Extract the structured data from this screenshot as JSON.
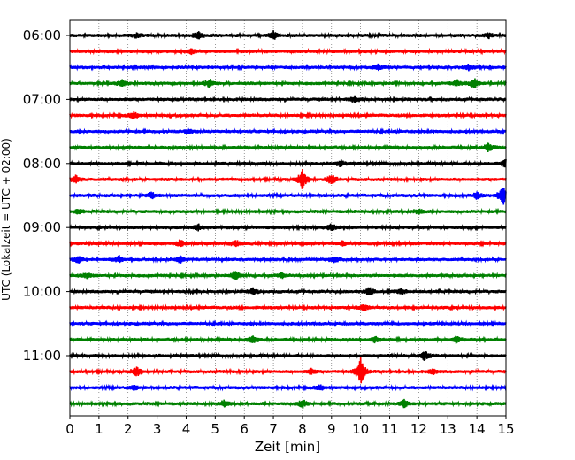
{
  "chart_data": {
    "type": "line",
    "title": "",
    "xlabel": "Zeit  [min]",
    "ylabel": "UTC (Lokalzeit = UTC + 02:00)",
    "xlim": [
      0,
      15
    ],
    "x_ticks": [
      "0",
      "1",
      "2",
      "3",
      "4",
      "5",
      "6",
      "7",
      "8",
      "9",
      "10",
      "11",
      "12",
      "13",
      "14",
      "15"
    ],
    "y_tick_labels": [
      "06:00",
      "07:00",
      "08:00",
      "09:00",
      "10:00",
      "11:00"
    ],
    "grid": "vertical dotted lines at each minute",
    "trace_interval_minutes": 15,
    "start_utc": "06:00",
    "colors_cycle": [
      "#000000",
      "#ff0000",
      "#0000ff",
      "#008000"
    ],
    "series": [
      {
        "start": "06:00",
        "color": "#000000",
        "events": [
          {
            "t": 2.3,
            "amp": 0.3
          },
          {
            "t": 4.4,
            "amp": 0.5
          },
          {
            "t": 7.0,
            "amp": 0.5
          },
          {
            "t": 14.4,
            "amp": 0.3
          }
        ]
      },
      {
        "start": "06:15",
        "color": "#ff0000",
        "events": [
          {
            "t": 4.2,
            "amp": 0.3
          }
        ]
      },
      {
        "start": "06:30",
        "color": "#0000ff",
        "events": [
          {
            "t": 10.6,
            "amp": 0.3
          },
          {
            "t": 13.7,
            "amp": 0.3
          }
        ]
      },
      {
        "start": "06:45",
        "color": "#008000",
        "events": [
          {
            "t": 1.8,
            "amp": 0.4
          },
          {
            "t": 4.8,
            "amp": 0.5
          },
          {
            "t": 13.3,
            "amp": 0.4
          },
          {
            "t": 13.9,
            "amp": 0.6
          }
        ]
      },
      {
        "start": "07:00",
        "color": "#000000",
        "events": [
          {
            "t": 9.8,
            "amp": 0.4
          }
        ]
      },
      {
        "start": "07:15",
        "color": "#ff0000",
        "events": [
          {
            "t": 2.2,
            "amp": 0.4
          }
        ]
      },
      {
        "start": "07:30",
        "color": "#0000ff",
        "events": [
          {
            "t": 4.1,
            "amp": 0.3
          }
        ]
      },
      {
        "start": "07:45",
        "color": "#008000",
        "events": [
          {
            "t": 14.4,
            "amp": 0.6
          }
        ]
      },
      {
        "start": "08:00",
        "color": "#000000",
        "events": [
          {
            "t": 9.3,
            "amp": 0.4
          },
          {
            "t": 15.0,
            "amp": 0.6
          }
        ]
      },
      {
        "start": "08:15",
        "color": "#ff0000",
        "events": [
          {
            "t": 0.2,
            "amp": 0.5
          },
          {
            "t": 8.0,
            "amp": 1.2
          },
          {
            "t": 9.0,
            "amp": 0.7
          }
        ]
      },
      {
        "start": "08:30",
        "color": "#0000ff",
        "events": [
          {
            "t": 2.8,
            "amp": 0.4
          },
          {
            "t": 14.0,
            "amp": 0.4
          },
          {
            "t": 14.9,
            "amp": 1.2
          }
        ]
      },
      {
        "start": "08:45",
        "color": "#008000",
        "events": [
          {
            "t": 0.3,
            "amp": 0.3
          },
          {
            "t": 12.0,
            "amp": 0.3
          }
        ]
      },
      {
        "start": "09:00",
        "color": "#000000",
        "events": [
          {
            "t": 4.4,
            "amp": 0.4
          },
          {
            "t": 9.0,
            "amp": 0.4
          }
        ]
      },
      {
        "start": "09:15",
        "color": "#ff0000",
        "events": [
          {
            "t": 3.8,
            "amp": 0.4
          },
          {
            "t": 5.7,
            "amp": 0.4
          },
          {
            "t": 9.4,
            "amp": 0.3
          }
        ]
      },
      {
        "start": "09:30",
        "color": "#0000ff",
        "events": [
          {
            "t": 0.3,
            "amp": 0.4
          },
          {
            "t": 1.7,
            "amp": 0.4
          },
          {
            "t": 3.8,
            "amp": 0.4
          },
          {
            "t": 9.1,
            "amp": 0.4
          }
        ]
      },
      {
        "start": "09:45",
        "color": "#008000",
        "events": [
          {
            "t": 0.6,
            "amp": 0.3
          },
          {
            "t": 5.7,
            "amp": 0.7
          },
          {
            "t": 7.3,
            "amp": 0.3
          }
        ]
      },
      {
        "start": "10:00",
        "color": "#000000",
        "events": [
          {
            "t": 6.3,
            "amp": 0.4
          },
          {
            "t": 10.3,
            "amp": 0.5
          },
          {
            "t": 11.4,
            "amp": 0.3
          }
        ]
      },
      {
        "start": "10:15",
        "color": "#ff0000",
        "events": [
          {
            "t": 10.1,
            "amp": 0.4
          }
        ]
      },
      {
        "start": "10:30",
        "color": "#0000ff",
        "events": []
      },
      {
        "start": "10:45",
        "color": "#008000",
        "events": [
          {
            "t": 6.3,
            "amp": 0.5
          },
          {
            "t": 10.5,
            "amp": 0.4
          },
          {
            "t": 13.3,
            "amp": 0.4
          }
        ]
      },
      {
        "start": "11:00",
        "color": "#000000",
        "events": [
          {
            "t": 12.2,
            "amp": 0.6
          }
        ]
      },
      {
        "start": "11:15",
        "color": "#ff0000",
        "events": [
          {
            "t": 2.3,
            "amp": 0.6
          },
          {
            "t": 8.3,
            "amp": 0.3
          },
          {
            "t": 10.0,
            "amp": 1.6
          },
          {
            "t": 12.5,
            "amp": 0.3
          }
        ]
      },
      {
        "start": "11:30",
        "color": "#0000ff",
        "events": [
          {
            "t": 2.2,
            "amp": 0.3
          },
          {
            "t": 8.6,
            "amp": 0.3
          }
        ]
      },
      {
        "start": "11:45",
        "color": "#008000",
        "events": [
          {
            "t": 5.3,
            "amp": 0.4
          },
          {
            "t": 8.0,
            "amp": 0.5
          },
          {
            "t": 11.5,
            "amp": 0.5
          }
        ]
      }
    ]
  }
}
